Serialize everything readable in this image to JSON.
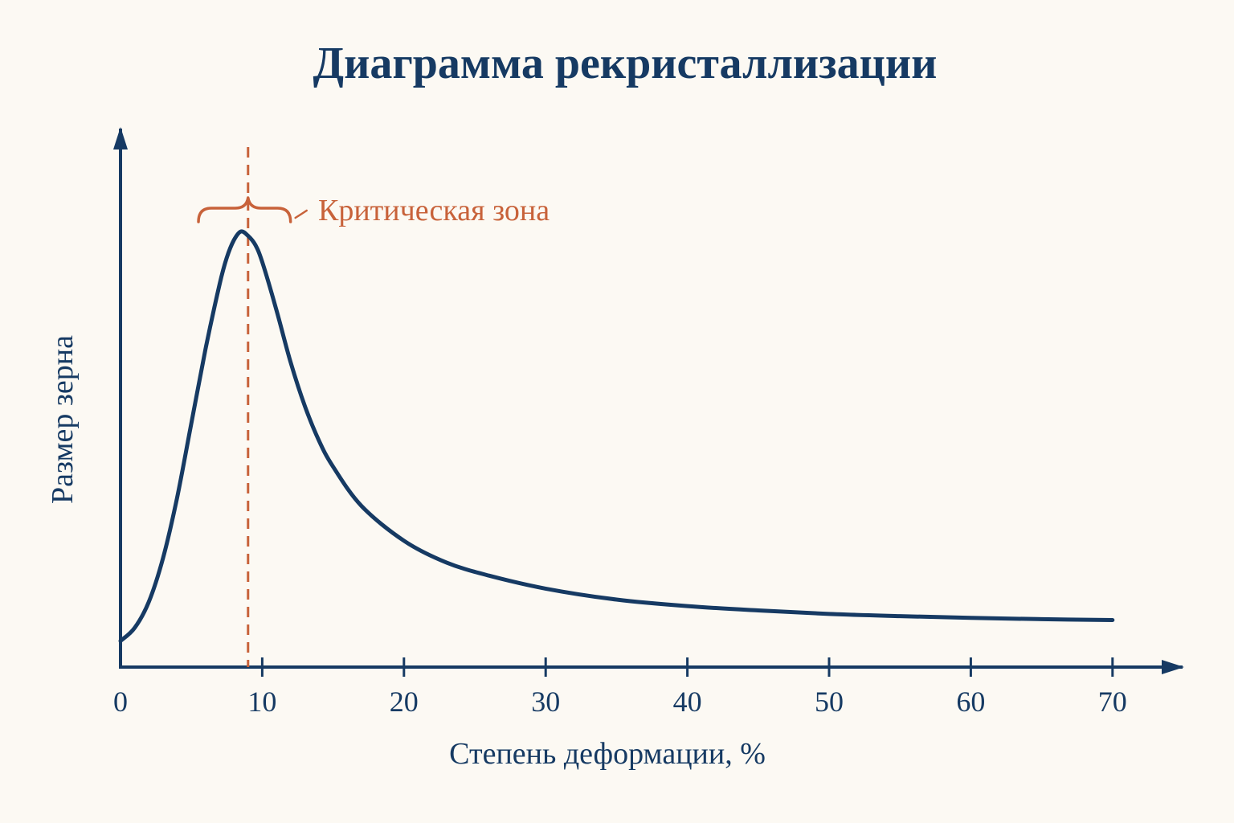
{
  "chart_data": {
    "type": "line",
    "title": "Диаграмма рекристаллизации",
    "xlabel": "Степень деформации, %",
    "ylabel": "Размер зерна",
    "xlim": [
      0,
      75
    ],
    "ylim": [
      0,
      1.05
    ],
    "x_ticks": [
      0,
      10,
      20,
      30,
      40,
      50,
      60,
      70
    ],
    "x_tick_labels": [
      "0",
      "10",
      "20",
      "30",
      "40",
      "50",
      "60",
      "70"
    ],
    "y_ticks_shown": false,
    "grid": false,
    "series": [
      {
        "x": [
          0,
          1,
          2,
          3,
          4,
          5,
          6,
          7,
          7.5,
          8,
          8.5,
          9,
          9.5,
          10,
          11,
          12,
          13,
          14,
          15,
          17,
          20,
          23,
          26,
          30,
          35,
          40,
          45,
          50,
          55,
          60,
          65,
          70
        ],
        "y": [
          0.06,
          0.09,
          0.15,
          0.25,
          0.39,
          0.56,
          0.73,
          0.88,
          0.94,
          0.98,
          1.0,
          0.99,
          0.97,
          0.93,
          0.82,
          0.7,
          0.6,
          0.52,
          0.46,
          0.37,
          0.29,
          0.24,
          0.21,
          0.18,
          0.155,
          0.14,
          0.13,
          0.122,
          0.117,
          0.113,
          0.11,
          0.108
        ]
      }
    ],
    "annotations": [
      {
        "text": "Критическая зона",
        "x_line": 9,
        "bracket_x_range": [
          5.5,
          12
        ]
      }
    ]
  },
  "colors": {
    "background": "#fcf9f3",
    "primary": "#163a63",
    "accent": "#c8623a"
  }
}
